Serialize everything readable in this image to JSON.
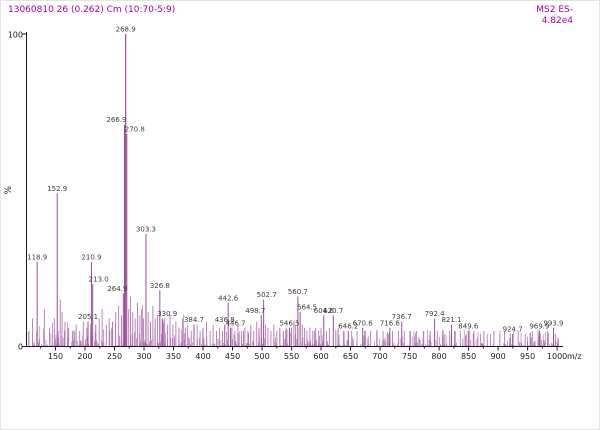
{
  "header": {
    "left": "13060810 26 (0.262) Cm (10:70-5:9)",
    "mode": "MS2 ES-",
    "intensity": "4.82e4"
  },
  "chart_data": {
    "type": "mass-spectrum",
    "title": "",
    "xlabel": "m/z",
    "ylabel": "%",
    "x_range": [
      100,
      1010
    ],
    "y_range": [
      0,
      100
    ],
    "x_ticks": [
      150,
      200,
      250,
      300,
      350,
      400,
      450,
      500,
      550,
      600,
      650,
      700,
      750,
      800,
      850,
      900,
      950,
      1000
    ],
    "y_tick_labels": {
      "top": "100",
      "bottom": "0"
    },
    "base_peak": {
      "mz": 268.9,
      "intensity_label": "4.82e4"
    },
    "labeled_peaks": [
      {
        "mz": 118.9,
        "pct": 27
      },
      {
        "mz": 152.9,
        "pct": 49
      },
      {
        "mz": 205.1,
        "pct": 8
      },
      {
        "mz": 210.9,
        "pct": 27
      },
      {
        "mz": 213.0,
        "pct": 20,
        "dx": 6
      },
      {
        "mz": 264.9,
        "pct": 17,
        "dx": -6
      },
      {
        "mz": 266.9,
        "pct": 71,
        "dx": -8
      },
      {
        "mz": 268.9,
        "pct": 100
      },
      {
        "mz": 270.8,
        "pct": 68,
        "dx": 8
      },
      {
        "mz": 303.3,
        "pct": 36
      },
      {
        "mz": 326.8,
        "pct": 18
      },
      {
        "mz": 330.9,
        "pct": 9,
        "dx": 5
      },
      {
        "mz": 384.7,
        "pct": 7
      },
      {
        "mz": 436.8,
        "pct": 7
      },
      {
        "mz": 442.6,
        "pct": 14
      },
      {
        "mz": 446.7,
        "pct": 6,
        "dx": 5
      },
      {
        "mz": 498.7,
        "pct": 10,
        "dx": -6
      },
      {
        "mz": 502.7,
        "pct": 15,
        "dx": 3
      },
      {
        "mz": 546.5,
        "pct": 6
      },
      {
        "mz": 560.7,
        "pct": 16
      },
      {
        "mz": 564.5,
        "pct": 11,
        "dx": 7
      },
      {
        "mz": 604.6,
        "pct": 10
      },
      {
        "mz": 620.7,
        "pct": 10
      },
      {
        "mz": 646.2,
        "pct": 5
      },
      {
        "mz": 670.6,
        "pct": 6
      },
      {
        "mz": 716.6,
        "pct": 6
      },
      {
        "mz": 736.7,
        "pct": 8
      },
      {
        "mz": 792.4,
        "pct": 9
      },
      {
        "mz": 821.1,
        "pct": 7
      },
      {
        "mz": 849.6,
        "pct": 5
      },
      {
        "mz": 924.7,
        "pct": 4
      },
      {
        "mz": 969.9,
        "pct": 5
      },
      {
        "mz": 993.9,
        "pct": 6
      }
    ],
    "minor_peaks": [
      [
        111,
        9
      ],
      [
        131,
        12
      ],
      [
        140,
        6
      ],
      [
        148,
        9
      ],
      [
        158,
        15
      ],
      [
        161,
        11
      ],
      [
        166,
        8
      ],
      [
        172,
        6
      ],
      [
        179,
        5
      ],
      [
        185,
        7
      ],
      [
        191,
        5
      ],
      [
        197,
        8
      ],
      [
        203,
        6
      ],
      [
        218,
        7
      ],
      [
        224,
        9
      ],
      [
        229,
        12
      ],
      [
        236,
        7
      ],
      [
        241,
        9
      ],
      [
        247,
        8
      ],
      [
        252,
        11
      ],
      [
        257,
        13
      ],
      [
        262,
        10
      ],
      [
        274,
        12
      ],
      [
        277,
        16
      ],
      [
        281,
        11
      ],
      [
        285,
        9
      ],
      [
        289,
        14
      ],
      [
        293,
        10
      ],
      [
        296,
        12
      ],
      [
        299,
        9
      ],
      [
        307,
        11
      ],
      [
        311,
        8
      ],
      [
        315,
        13
      ],
      [
        319,
        9
      ],
      [
        323,
        10
      ],
      [
        335,
        9
      ],
      [
        340,
        7
      ],
      [
        344,
        10
      ],
      [
        349,
        7
      ],
      [
        354,
        8
      ],
      [
        359,
        6
      ],
      [
        365,
        9
      ],
      [
        370,
        6
      ],
      [
        374,
        7
      ],
      [
        380,
        5
      ],
      [
        390,
        7
      ],
      [
        395,
        5
      ],
      [
        400,
        6
      ],
      [
        406,
        8
      ],
      [
        412,
        5
      ],
      [
        417,
        7
      ],
      [
        423,
        5
      ],
      [
        428,
        6
      ],
      [
        433,
        5
      ],
      [
        449,
        6
      ],
      [
        454,
        5
      ],
      [
        459,
        7
      ],
      [
        465,
        5
      ],
      [
        471,
        6
      ],
      [
        476,
        5
      ],
      [
        481,
        7
      ],
      [
        486,
        5
      ],
      [
        491,
        8
      ],
      [
        495,
        6
      ],
      [
        506,
        7
      ],
      [
        510,
        6
      ],
      [
        515,
        5
      ],
      [
        520,
        7
      ],
      [
        525,
        5
      ],
      [
        530,
        6
      ],
      [
        536,
        5
      ],
      [
        541,
        6
      ],
      [
        550,
        6
      ],
      [
        554,
        8
      ],
      [
        557,
        7
      ],
      [
        568,
        7
      ],
      [
        572,
        6
      ],
      [
        576,
        5
      ],
      [
        581,
        6
      ],
      [
        586,
        5
      ],
      [
        591,
        6
      ],
      [
        596,
        5
      ],
      [
        600,
        6
      ],
      [
        609,
        5
      ],
      [
        614,
        6
      ],
      [
        625,
        5
      ],
      [
        629,
        6
      ],
      [
        639,
        5
      ],
      [
        652,
        5
      ],
      [
        661,
        5
      ],
      [
        674,
        5
      ],
      [
        684,
        5
      ],
      [
        695,
        5
      ],
      [
        705,
        5
      ],
      [
        712,
        4
      ],
      [
        721,
        5
      ],
      [
        731,
        5
      ],
      [
        741,
        5
      ],
      [
        751,
        5
      ],
      [
        762,
        5
      ],
      [
        774,
        5
      ],
      [
        785,
        5
      ],
      [
        797,
        5
      ],
      [
        807,
        5
      ],
      [
        818,
        5
      ],
      [
        826,
        5
      ],
      [
        836,
        5
      ],
      [
        846,
        4
      ],
      [
        859,
        5
      ],
      [
        870,
        4
      ],
      [
        876,
        5
      ],
      [
        887,
        4
      ],
      [
        893,
        5
      ],
      [
        903,
        4
      ],
      [
        911,
        5
      ],
      [
        921,
        4
      ],
      [
        934,
        5
      ],
      [
        946,
        4
      ],
      [
        958,
        5
      ],
      [
        970,
        4
      ],
      [
        984,
        5
      ],
      [
        997,
        4
      ]
    ],
    "noise": {
      "seed": 20130608,
      "count": 520,
      "min_pct": 0.4,
      "max_pct": 5.5,
      "dense_below_mz": 370,
      "dense_gain": 1.8
    },
    "colors": {
      "trace": "#b476b4",
      "peaks": "#9a4d9a",
      "header_text": "#a100a1",
      "axis": "#1a1a1a",
      "label_text": "#3c3c3c"
    }
  }
}
